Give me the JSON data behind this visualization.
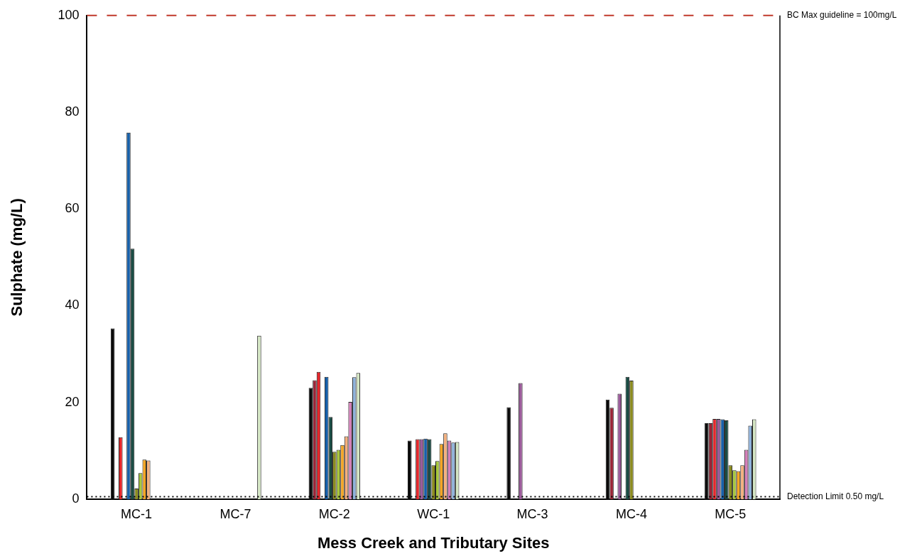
{
  "chart_data": {
    "type": "bar",
    "xlabel": "Mess Creek and Tributary Sites",
    "ylabel": "Sulphate (mg/L)",
    "categories": [
      "MC-1",
      "MC-7",
      "MC-2",
      "WC-1",
      "MC-3",
      "MC-4",
      "MC-5"
    ],
    "series": [
      {
        "color": "#0a0a0a",
        "values": [
          35.3,
          null,
          23.0,
          12.1,
          19.0,
          20.6,
          15.7
        ]
      },
      {
        "color": "#9b2335",
        "values": [
          null,
          null,
          24.6,
          null,
          null,
          18.9,
          15.7
        ]
      },
      {
        "color": "#e8262b",
        "values": [
          12.8,
          null,
          26.3,
          12.4,
          null,
          null,
          16.6
        ]
      },
      {
        "color": "#9c5b9b",
        "values": [
          null,
          null,
          null,
          12.4,
          24.0,
          21.8,
          16.6
        ]
      },
      {
        "color": "#1560ac",
        "values": [
          75.8,
          null,
          25.3,
          12.5,
          null,
          null,
          16.5
        ]
      },
      {
        "color": "#1a4d45",
        "values": [
          51.8,
          null,
          17.0,
          12.4,
          null,
          25.3,
          16.3
        ]
      },
      {
        "color": "#8c8c1e",
        "values": [
          2.2,
          null,
          9.8,
          7.0,
          null,
          24.5,
          7.0
        ]
      },
      {
        "color": "#a8c83c",
        "values": [
          5.4,
          null,
          10.2,
          7.9,
          null,
          null,
          6.0
        ]
      },
      {
        "color": "#f5a623",
        "values": [
          8.2,
          null,
          11.2,
          11.4,
          null,
          null,
          5.8
        ]
      },
      {
        "color": "#f5b07c",
        "values": [
          8.0,
          null,
          13.0,
          13.6,
          null,
          null,
          7.0
        ]
      },
      {
        "color": "#d47fb9",
        "values": [
          null,
          null,
          20.1,
          12.1,
          null,
          null,
          10.2
        ]
      },
      {
        "color": "#8fb3dc",
        "values": [
          null,
          null,
          25.2,
          11.7,
          null,
          null,
          15.2
        ]
      },
      {
        "color": "#d4e6c3",
        "values": [
          null,
          33.8,
          26.1,
          11.8,
          null,
          null,
          16.5
        ]
      }
    ],
    "ylim": [
      0,
      100
    ],
    "yticks": [
      0,
      20,
      40,
      60,
      80,
      100
    ],
    "grid": false,
    "legend": false,
    "ref_lines": [
      {
        "axis": "y",
        "value": 100,
        "label": "BC Max guideline = 100mg/L",
        "color": "#c0392b",
        "line_style": "dashed"
      },
      {
        "axis": "y",
        "value": 0.5,
        "label": "Detection Limit 0.50 mg/L",
        "color": "#000000",
        "line_style": "dotted"
      }
    ]
  }
}
